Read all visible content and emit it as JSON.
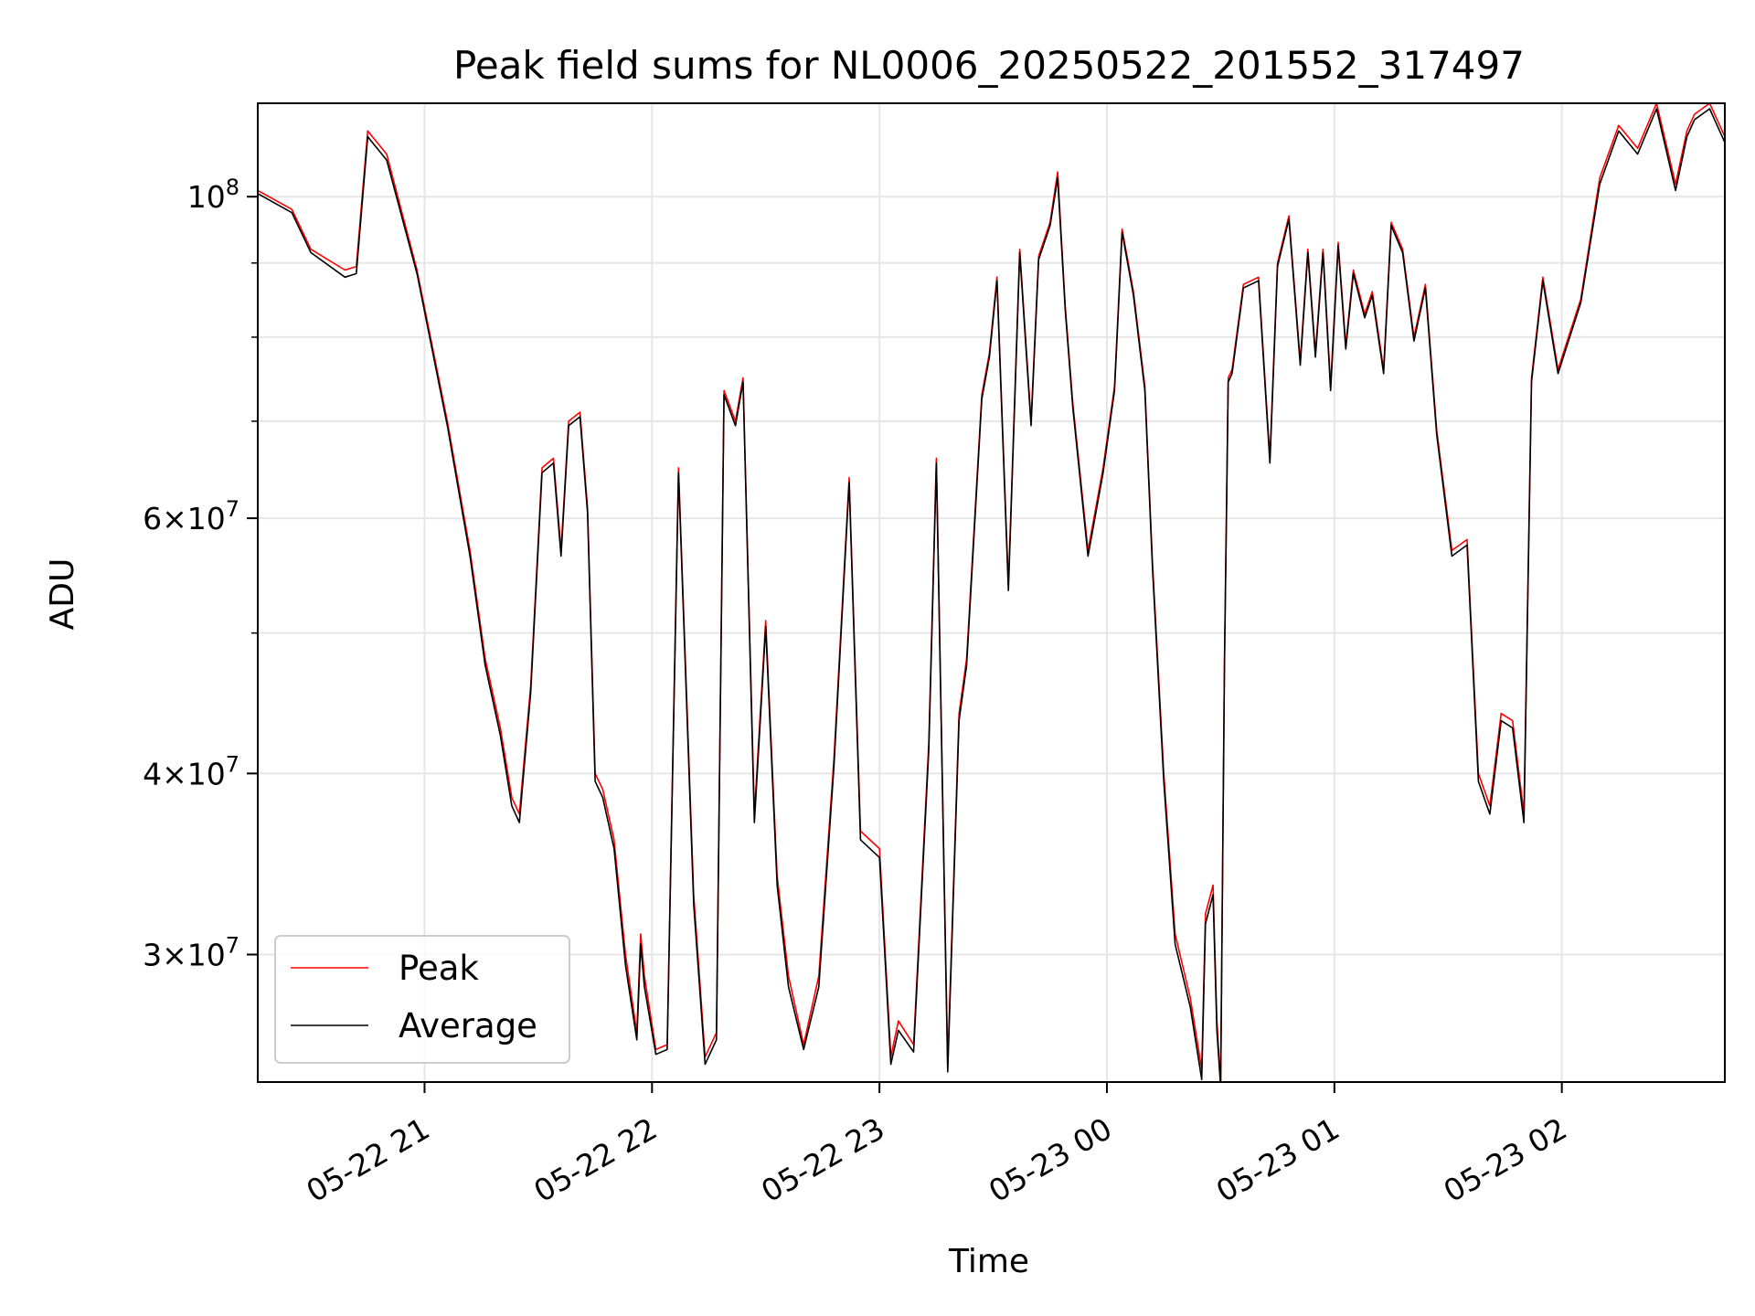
{
  "chart_data": {
    "type": "line",
    "title": "Peak field sums for NL0006_20250522_201552_317497",
    "xlabel": "Time",
    "ylabel": "ADU",
    "y_scale": "log",
    "grid": true,
    "legend_position": "lower-left",
    "x_range": [
      "2025-05-22 20:16",
      "2025-05-23 02:43"
    ],
    "ylim": [
      24500000,
      116000000
    ],
    "x_ticks": [
      {
        "t": "2025-05-22 21:00",
        "label": "05-22 21"
      },
      {
        "t": "2025-05-22 22:00",
        "label": "05-22 22"
      },
      {
        "t": "2025-05-22 23:00",
        "label": "05-22 23"
      },
      {
        "t": "2025-05-23 00:00",
        "label": "05-23 00"
      },
      {
        "t": "2025-05-23 01:00",
        "label": "05-23 01"
      },
      {
        "t": "2025-05-23 02:00",
        "label": "05-23 02"
      }
    ],
    "y_ticks_major": [
      {
        "value": 30000000,
        "mant": "3",
        "exp": "7"
      },
      {
        "value": 40000000,
        "mant": "4",
        "exp": "7"
      },
      {
        "value": 60000000,
        "mant": "6",
        "exp": "7"
      },
      {
        "value": 100000000,
        "mant": "",
        "exp": "8"
      }
    ],
    "y_ticks_minor": [
      50000000,
      70000000,
      80000000,
      90000000
    ],
    "series": [
      {
        "name": "Peak",
        "color": "#ff0000",
        "x": [
          "2025-05-22 20:16",
          "2025-05-22 20:25",
          "2025-05-22 20:30",
          "2025-05-22 20:39",
          "2025-05-22 20:42",
          "2025-05-22 20:45",
          "2025-05-22 20:50",
          "2025-05-22 20:58",
          "2025-05-22 21:06",
          "2025-05-22 21:12",
          "2025-05-22 21:16",
          "2025-05-22 21:20",
          "2025-05-22 21:23",
          "2025-05-22 21:25",
          "2025-05-22 21:28",
          "2025-05-22 21:31",
          "2025-05-22 21:34",
          "2025-05-22 21:36",
          "2025-05-22 21:38",
          "2025-05-22 21:41",
          "2025-05-22 21:43",
          "2025-05-22 21:45",
          "2025-05-22 21:47",
          "2025-05-22 21:50",
          "2025-05-22 21:53",
          "2025-05-22 21:56",
          "2025-05-22 21:57",
          "2025-05-22 21:58",
          "2025-05-22 22:01",
          "2025-05-22 22:04",
          "2025-05-22 22:07",
          "2025-05-22 22:11",
          "2025-05-22 22:14",
          "2025-05-22 22:17",
          "2025-05-22 22:19",
          "2025-05-22 22:22",
          "2025-05-22 22:24",
          "2025-05-22 22:27",
          "2025-05-22 22:30",
          "2025-05-22 22:33",
          "2025-05-22 22:36",
          "2025-05-22 22:40",
          "2025-05-22 22:44",
          "2025-05-22 22:48",
          "2025-05-22 22:52",
          "2025-05-22 22:55",
          "2025-05-22 23:00",
          "2025-05-22 23:03",
          "2025-05-22 23:05",
          "2025-05-22 23:09",
          "2025-05-22 23:13",
          "2025-05-22 23:15",
          "2025-05-22 23:18",
          "2025-05-22 23:21",
          "2025-05-22 23:23",
          "2025-05-22 23:27",
          "2025-05-22 23:29",
          "2025-05-22 23:31",
          "2025-05-22 23:34",
          "2025-05-22 23:37",
          "2025-05-22 23:40",
          "2025-05-22 23:42",
          "2025-05-22 23:45",
          "2025-05-22 23:47",
          "2025-05-22 23:49",
          "2025-05-22 23:51",
          "2025-05-22 23:55",
          "2025-05-22 23:59",
          "2025-05-23 00:02",
          "2025-05-23 00:04",
          "2025-05-23 00:07",
          "2025-05-23 00:10",
          "2025-05-23 00:12",
          "2025-05-23 00:15",
          "2025-05-23 00:18",
          "2025-05-23 00:22",
          "2025-05-23 00:25",
          "2025-05-23 00:26",
          "2025-05-23 00:28",
          "2025-05-23 00:29",
          "2025-05-23 00:30",
          "2025-05-23 00:31",
          "2025-05-23 00:32",
          "2025-05-23 00:33",
          "2025-05-23 00:36",
          "2025-05-23 00:40",
          "2025-05-23 00:43",
          "2025-05-23 00:45",
          "2025-05-23 00:48",
          "2025-05-23 00:51",
          "2025-05-23 00:53",
          "2025-05-23 00:55",
          "2025-05-23 00:57",
          "2025-05-23 00:59",
          "2025-05-23 01:01",
          "2025-05-23 01:03",
          "2025-05-23 01:05",
          "2025-05-23 01:08",
          "2025-05-23 01:10",
          "2025-05-23 01:13",
          "2025-05-23 01:15",
          "2025-05-23 01:18",
          "2025-05-23 01:21",
          "2025-05-23 01:24",
          "2025-05-23 01:27",
          "2025-05-23 01:31",
          "2025-05-23 01:35",
          "2025-05-23 01:38",
          "2025-05-23 01:41",
          "2025-05-23 01:44",
          "2025-05-23 01:47",
          "2025-05-23 01:50",
          "2025-05-23 01:52",
          "2025-05-23 01:55",
          "2025-05-23 01:59",
          "2025-05-23 02:05",
          "2025-05-23 02:10",
          "2025-05-23 02:15",
          "2025-05-23 02:20",
          "2025-05-23 02:25",
          "2025-05-23 02:30",
          "2025-05-23 02:33",
          "2025-05-23 02:35",
          "2025-05-23 02:39",
          "2025-05-23 02:43"
        ],
        "values": [
          101000000,
          98000000,
          92000000,
          89000000,
          89500000,
          111000000,
          107000000,
          89000000,
          70000000,
          57000000,
          48000000,
          43000000,
          38500000,
          37500000,
          46000000,
          65000000,
          66000000,
          57000000,
          70000000,
          71000000,
          61000000,
          40000000,
          39000000,
          36000000,
          30000000,
          26500000,
          31000000,
          29000000,
          25800000,
          26000000,
          65000000,
          33000000,
          25500000,
          26500000,
          73500000,
          70000000,
          75000000,
          37500000,
          51000000,
          34000000,
          29000000,
          26000000,
          29000000,
          41000000,
          64000000,
          36500000,
          35500000,
          25500000,
          27000000,
          26000000,
          42000000,
          66000000,
          25200000,
          44000000,
          48000000,
          73000000,
          78000000,
          88000000,
          54000000,
          92000000,
          70000000,
          91000000,
          96000000,
          104000000,
          84000000,
          72000000,
          57000000,
          65000000,
          74000000,
          95000000,
          86000000,
          74000000,
          56000000,
          40000000,
          31000000,
          28000000,
          25000000,
          32000000,
          33500000,
          27000000,
          24500000,
          48000000,
          75000000,
          76000000,
          87000000,
          88000000,
          66000000,
          90000000,
          97000000,
          77000000,
          92000000,
          78000000,
          92000000,
          74000000,
          93000000,
          79000000,
          89000000,
          83000000,
          86000000,
          76000000,
          96000000,
          92000000,
          80000000,
          87000000,
          69000000,
          57000000,
          58000000,
          40000000,
          38000000,
          44000000,
          43500000,
          37500000,
          75000000,
          88000000,
          76000000,
          85000000,
          103000000,
          112000000,
          108000000,
          116000000,
          102000000,
          111000000,
          114000000,
          116000000,
          110000000
        ],
        "_note": ""
      },
      {
        "name": "Average",
        "color": "#000000",
        "x": [
          "2025-05-22 20:16",
          "2025-05-22 20:25",
          "2025-05-22 20:30",
          "2025-05-22 20:39",
          "2025-05-22 20:42",
          "2025-05-22 20:45",
          "2025-05-22 20:50",
          "2025-05-22 20:58",
          "2025-05-22 21:06",
          "2025-05-22 21:12",
          "2025-05-22 21:16",
          "2025-05-22 21:20",
          "2025-05-22 21:23",
          "2025-05-22 21:25",
          "2025-05-22 21:28",
          "2025-05-22 21:31",
          "2025-05-22 21:34",
          "2025-05-22 21:36",
          "2025-05-22 21:38",
          "2025-05-22 21:41",
          "2025-05-22 21:43",
          "2025-05-22 21:45",
          "2025-05-22 21:47",
          "2025-05-22 21:50",
          "2025-05-22 21:53",
          "2025-05-22 21:56",
          "2025-05-22 21:57",
          "2025-05-22 21:58",
          "2025-05-22 22:01",
          "2025-05-22 22:04",
          "2025-05-22 22:07",
          "2025-05-22 22:11",
          "2025-05-22 22:14",
          "2025-05-22 22:17",
          "2025-05-22 22:19",
          "2025-05-22 22:22",
          "2025-05-22 22:24",
          "2025-05-22 22:27",
          "2025-05-22 22:30",
          "2025-05-22 22:33",
          "2025-05-22 22:36",
          "2025-05-22 22:40",
          "2025-05-22 22:44",
          "2025-05-22 22:48",
          "2025-05-22 22:52",
          "2025-05-22 22:55",
          "2025-05-22 23:00",
          "2025-05-22 23:03",
          "2025-05-22 23:05",
          "2025-05-22 23:09",
          "2025-05-22 23:13",
          "2025-05-22 23:15",
          "2025-05-22 23:18",
          "2025-05-22 23:21",
          "2025-05-22 23:23",
          "2025-05-22 23:27",
          "2025-05-22 23:29",
          "2025-05-22 23:31",
          "2025-05-22 23:34",
          "2025-05-22 23:37",
          "2025-05-22 23:40",
          "2025-05-22 23:42",
          "2025-05-22 23:45",
          "2025-05-22 23:47",
          "2025-05-22 23:49",
          "2025-05-22 23:51",
          "2025-05-22 23:55",
          "2025-05-22 23:59",
          "2025-05-23 00:02",
          "2025-05-23 00:04",
          "2025-05-23 00:07",
          "2025-05-23 00:10",
          "2025-05-23 00:12",
          "2025-05-23 00:15",
          "2025-05-23 00:18",
          "2025-05-23 00:22",
          "2025-05-23 00:25",
          "2025-05-23 00:26",
          "2025-05-23 00:28",
          "2025-05-23 00:29",
          "2025-05-23 00:30",
          "2025-05-23 00:31",
          "2025-05-23 00:32",
          "2025-05-23 00:33",
          "2025-05-23 00:36",
          "2025-05-23 00:40",
          "2025-05-23 00:43",
          "2025-05-23 00:45",
          "2025-05-23 00:48",
          "2025-05-23 00:51",
          "2025-05-23 00:53",
          "2025-05-23 00:55",
          "2025-05-23 00:57",
          "2025-05-23 00:59",
          "2025-05-23 01:01",
          "2025-05-23 01:03",
          "2025-05-23 01:05",
          "2025-05-23 01:08",
          "2025-05-23 01:10",
          "2025-05-23 01:13",
          "2025-05-23 01:15",
          "2025-05-23 01:18",
          "2025-05-23 01:21",
          "2025-05-23 01:24",
          "2025-05-23 01:27",
          "2025-05-23 01:31",
          "2025-05-23 01:35",
          "2025-05-23 01:38",
          "2025-05-23 01:41",
          "2025-05-23 01:44",
          "2025-05-23 01:47",
          "2025-05-23 01:50",
          "2025-05-23 01:52",
          "2025-05-23 01:55",
          "2025-05-23 01:59",
          "2025-05-23 02:05",
          "2025-05-23 02:10",
          "2025-05-23 02:15",
          "2025-05-23 02:20",
          "2025-05-23 02:25",
          "2025-05-23 02:30",
          "2025-05-23 02:33",
          "2025-05-23 02:35",
          "2025-05-23 02:39",
          "2025-05-23 02:43"
        ],
        "values": [
          100500000,
          97500000,
          91500000,
          88000000,
          88500000,
          110000000,
          106000000,
          88500000,
          69500000,
          56500000,
          47500000,
          42500000,
          38000000,
          37000000,
          45500000,
          64500000,
          65500000,
          56500000,
          69500000,
          70500000,
          60500000,
          39500000,
          38500000,
          35500000,
          29500000,
          26200000,
          30500000,
          28500000,
          25600000,
          25800000,
          64500000,
          32500000,
          25200000,
          26200000,
          73000000,
          69500000,
          74500000,
          37000000,
          50500000,
          33500000,
          28500000,
          25800000,
          28500000,
          40500000,
          63500000,
          36000000,
          35000000,
          25200000,
          26600000,
          25700000,
          41500000,
          65500000,
          24900000,
          43500000,
          47500000,
          72500000,
          77500000,
          87500000,
          53500000,
          91500000,
          69500000,
          90500000,
          95500000,
          103000000,
          83500000,
          71500000,
          56500000,
          64500000,
          73500000,
          94500000,
          85500000,
          73500000,
          55500000,
          39500000,
          30500000,
          27600000,
          24600000,
          31500000,
          33000000,
          26600000,
          24300000,
          47500000,
          74500000,
          75500000,
          86500000,
          87500000,
          65500000,
          89500000,
          96500000,
          76500000,
          91500000,
          77500000,
          91500000,
          73500000,
          92500000,
          78500000,
          88500000,
          82500000,
          85500000,
          75500000,
          95500000,
          91500000,
          79500000,
          86500000,
          68500000,
          56500000,
          57500000,
          39500000,
          37500000,
          43500000,
          43000000,
          37000000,
          74500000,
          87500000,
          75500000,
          84500000,
          102000000,
          111000000,
          107000000,
          115000000,
          101000000,
          110000000,
          113000000,
          115000000,
          109000000
        ]
      }
    ]
  }
}
